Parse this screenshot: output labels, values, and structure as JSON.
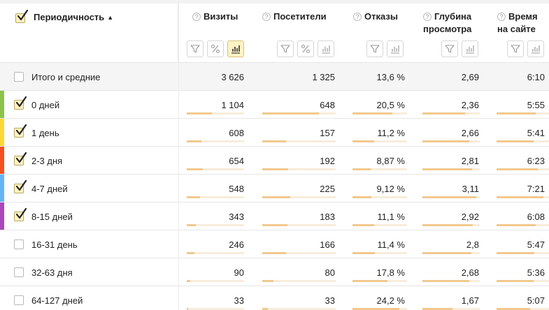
{
  "header": {
    "dimension_label": "Периодичность",
    "sort_indicator": "▲",
    "metrics": [
      {
        "line1": "Визиты",
        "line2": ""
      },
      {
        "line1": "Посетители",
        "line2": ""
      },
      {
        "line1": "Отказы",
        "line2": ""
      },
      {
        "line1": "Глубина",
        "line2": "просмотра"
      },
      {
        "line1": "Время",
        "line2": "на сайте"
      }
    ]
  },
  "total_row": {
    "label": "Итого и средние",
    "values": [
      "3 626",
      "1 325",
      "13,6 %",
      "2,69",
      "6:10"
    ]
  },
  "rows": [
    {
      "label": "0 дней",
      "checked": true,
      "color": "#8bc34a",
      "values": [
        "1 104",
        "648",
        "20,5 %",
        "2,36",
        "5:55"
      ],
      "bars": [
        0.44,
        0.77,
        0.73,
        0.74,
        0.74
      ]
    },
    {
      "label": "1 день",
      "checked": true,
      "color": "#fdd835",
      "values": [
        "608",
        "157",
        "11,2 %",
        "2,66",
        "5:41"
      ],
      "bars": [
        0.26,
        0.32,
        0.4,
        0.82,
        0.71
      ]
    },
    {
      "label": "2-3 дня",
      "checked": true,
      "color": "#f4511e",
      "values": [
        "654",
        "192",
        "8,87 %",
        "2,81",
        "6:23"
      ],
      "bars": [
        0.28,
        0.35,
        0.33,
        0.86,
        0.78
      ]
    },
    {
      "label": "4-7 дней",
      "checked": true,
      "color": "#64b5f6",
      "values": [
        "548",
        "225",
        "9,12 %",
        "3,11",
        "7:21"
      ],
      "bars": [
        0.23,
        0.38,
        0.34,
        0.94,
        0.89
      ]
    },
    {
      "label": "8-15 дней",
      "checked": true,
      "color": "#ab47bc",
      "values": [
        "343",
        "183",
        "11,1 %",
        "2,92",
        "6:08"
      ],
      "bars": [
        0.16,
        0.34,
        0.4,
        0.88,
        0.75
      ]
    },
    {
      "label": "16-31 день",
      "checked": false,
      "color": "",
      "values": [
        "246",
        "166",
        "11,4 %",
        "2,8",
        "5:47"
      ],
      "bars": [
        0.13,
        0.32,
        0.41,
        0.85,
        0.72
      ]
    },
    {
      "label": "32-63 дня",
      "checked": false,
      "color": "",
      "values": [
        "90",
        "80",
        "17,8 %",
        "2,68",
        "5:36"
      ],
      "bars": [
        0.06,
        0.15,
        0.64,
        0.82,
        0.7
      ]
    },
    {
      "label": "64-127 дней",
      "checked": false,
      "color": "",
      "values": [
        "33",
        "33",
        "24,2 %",
        "1,67",
        "5:07"
      ],
      "bars": [
        0.03,
        0.08,
        0.86,
        0.52,
        0.64
      ]
    }
  ],
  "icons": [
    "checkbox-icon",
    "question-icon",
    "filter-icon",
    "percent-icon",
    "bar-chart-icon"
  ]
}
